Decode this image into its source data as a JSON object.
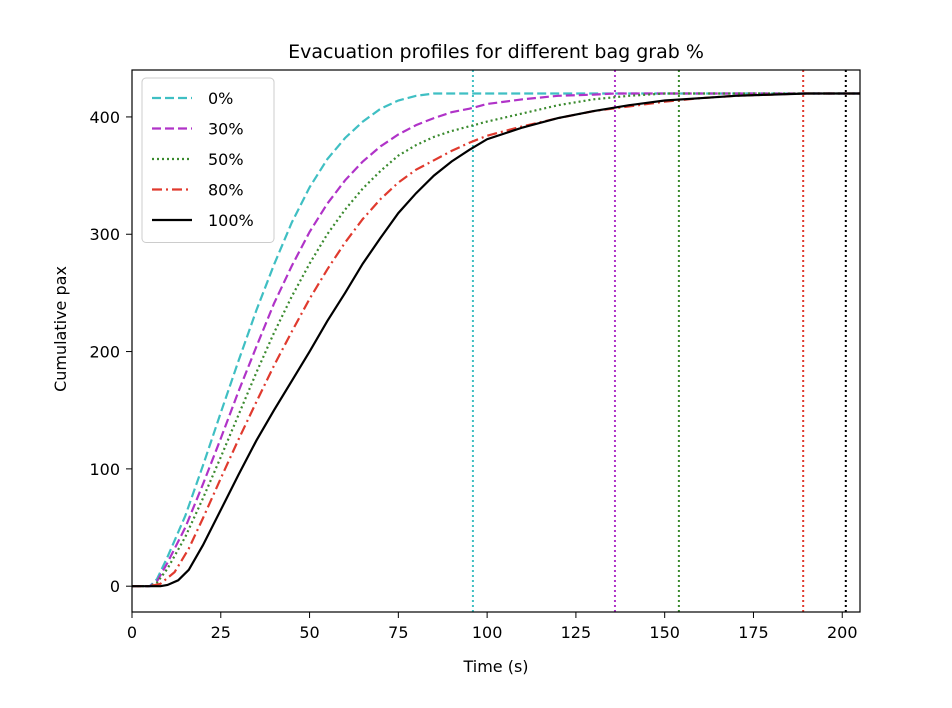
{
  "chart_data": {
    "type": "line",
    "title": "Evacuation profiles for different bag grab %",
    "xlabel": "Time (s)",
    "ylabel": "Cumulative pax",
    "xlim": [
      0,
      205
    ],
    "ylim": [
      -22,
      440
    ],
    "xticks": [
      0,
      25,
      50,
      75,
      100,
      125,
      150,
      175,
      200
    ],
    "yticks": [
      0,
      100,
      200,
      300,
      400
    ],
    "grid": false,
    "legend_position": "upper-left",
    "series": [
      {
        "name": "0%",
        "color": "#3fbfc3",
        "dash": "dashed",
        "points": [
          [
            0,
            0
          ],
          [
            5,
            0
          ],
          [
            7,
            6
          ],
          [
            10,
            25
          ],
          [
            15,
            60
          ],
          [
            20,
            103
          ],
          [
            25,
            148
          ],
          [
            30,
            192
          ],
          [
            35,
            235
          ],
          [
            40,
            274
          ],
          [
            45,
            310
          ],
          [
            50,
            340
          ],
          [
            55,
            364
          ],
          [
            60,
            382
          ],
          [
            65,
            396
          ],
          [
            70,
            407
          ],
          [
            75,
            414
          ],
          [
            80,
            418
          ],
          [
            85,
            420
          ],
          [
            90,
            420
          ],
          [
            95,
            420
          ],
          [
            100,
            420
          ],
          [
            125,
            420
          ],
          [
            150,
            420
          ],
          [
            175,
            420
          ],
          [
            205,
            420
          ]
        ],
        "end_time": 96
      },
      {
        "name": "30%",
        "color": "#b033c8",
        "dash": "dashed",
        "points": [
          [
            0,
            0
          ],
          [
            5,
            0
          ],
          [
            7,
            4
          ],
          [
            10,
            20
          ],
          [
            15,
            50
          ],
          [
            20,
            87
          ],
          [
            25,
            126
          ],
          [
            30,
            166
          ],
          [
            35,
            204
          ],
          [
            40,
            241
          ],
          [
            45,
            273
          ],
          [
            50,
            302
          ],
          [
            55,
            326
          ],
          [
            60,
            346
          ],
          [
            65,
            362
          ],
          [
            70,
            375
          ],
          [
            75,
            385
          ],
          [
            80,
            393
          ],
          [
            85,
            399
          ],
          [
            90,
            404
          ],
          [
            95,
            407
          ],
          [
            100,
            411
          ],
          [
            110,
            415
          ],
          [
            120,
            418
          ],
          [
            130,
            419
          ],
          [
            136,
            420
          ],
          [
            150,
            420
          ],
          [
            175,
            420
          ],
          [
            205,
            420
          ]
        ],
        "end_time": 136
      },
      {
        "name": "50%",
        "color": "#3a8a2e",
        "dash": "dotted",
        "points": [
          [
            0,
            0
          ],
          [
            5,
            0
          ],
          [
            7,
            3
          ],
          [
            10,
            15
          ],
          [
            15,
            42
          ],
          [
            20,
            75
          ],
          [
            25,
            110
          ],
          [
            30,
            146
          ],
          [
            35,
            182
          ],
          [
            40,
            216
          ],
          [
            45,
            247
          ],
          [
            50,
            275
          ],
          [
            55,
            300
          ],
          [
            60,
            321
          ],
          [
            65,
            339
          ],
          [
            70,
            354
          ],
          [
            75,
            367
          ],
          [
            80,
            376
          ],
          [
            85,
            383
          ],
          [
            90,
            388
          ],
          [
            95,
            392
          ],
          [
            100,
            396
          ],
          [
            110,
            403
          ],
          [
            120,
            410
          ],
          [
            130,
            415
          ],
          [
            140,
            418
          ],
          [
            150,
            420
          ],
          [
            155,
            420
          ],
          [
            175,
            420
          ],
          [
            205,
            420
          ]
        ],
        "end_time": 154
      },
      {
        "name": "80%",
        "color": "#e03a2e",
        "dash": "dashdot",
        "points": [
          [
            0,
            0
          ],
          [
            5,
            0
          ],
          [
            8,
            2
          ],
          [
            12,
            12
          ],
          [
            16,
            32
          ],
          [
            20,
            58
          ],
          [
            25,
            92
          ],
          [
            30,
            125
          ],
          [
            35,
            157
          ],
          [
            40,
            188
          ],
          [
            45,
            217
          ],
          [
            50,
            245
          ],
          [
            55,
            270
          ],
          [
            60,
            293
          ],
          [
            65,
            313
          ],
          [
            70,
            330
          ],
          [
            75,
            344
          ],
          [
            80,
            355
          ],
          [
            85,
            363
          ],
          [
            90,
            371
          ],
          [
            95,
            378
          ],
          [
            100,
            384
          ],
          [
            110,
            392
          ],
          [
            120,
            399
          ],
          [
            130,
            405
          ],
          [
            140,
            409
          ],
          [
            150,
            413
          ],
          [
            160,
            416
          ],
          [
            170,
            418
          ],
          [
            180,
            419
          ],
          [
            189,
            420
          ],
          [
            205,
            420
          ]
        ],
        "end_time": 189
      },
      {
        "name": "100%",
        "color": "#000000",
        "dash": "solid",
        "points": [
          [
            0,
            0
          ],
          [
            8,
            0
          ],
          [
            10,
            1
          ],
          [
            13,
            5
          ],
          [
            16,
            14
          ],
          [
            20,
            35
          ],
          [
            25,
            65
          ],
          [
            30,
            95
          ],
          [
            35,
            124
          ],
          [
            40,
            150
          ],
          [
            45,
            175
          ],
          [
            50,
            200
          ],
          [
            55,
            226
          ],
          [
            60,
            250
          ],
          [
            65,
            275
          ],
          [
            70,
            297
          ],
          [
            75,
            318
          ],
          [
            80,
            335
          ],
          [
            85,
            350
          ],
          [
            90,
            362
          ],
          [
            95,
            372
          ],
          [
            100,
            381
          ],
          [
            110,
            391
          ],
          [
            120,
            399
          ],
          [
            130,
            405
          ],
          [
            140,
            410
          ],
          [
            150,
            414
          ],
          [
            160,
            416
          ],
          [
            170,
            418
          ],
          [
            180,
            419
          ],
          [
            190,
            420
          ],
          [
            201,
            420
          ],
          [
            205,
            420
          ]
        ],
        "end_time": 201
      }
    ]
  }
}
